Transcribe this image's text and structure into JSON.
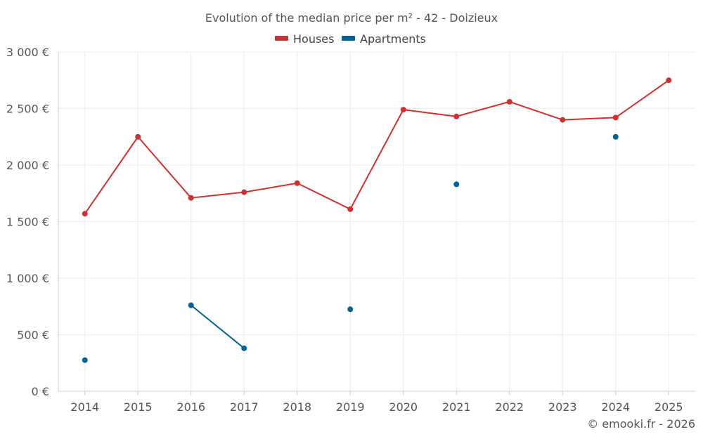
{
  "chart_data": {
    "type": "line",
    "title": "Evolution of the median price per m² - 42 - Doizieux",
    "xlabel": "",
    "ylabel": "",
    "categories": [
      "2014",
      "2015",
      "2016",
      "2017",
      "2018",
      "2019",
      "2020",
      "2021",
      "2022",
      "2023",
      "2024",
      "2025"
    ],
    "ylim": [
      0,
      3000
    ],
    "yticks": [
      0,
      500,
      1000,
      1500,
      2000,
      2500,
      3000
    ],
    "ytick_labels": [
      "0 €",
      "500 €",
      "1 000 €",
      "1 500 €",
      "2 000 €",
      "2 500 €",
      "3 000 €"
    ],
    "grid": true,
    "legend_position": "top-center",
    "series": [
      {
        "name": "Houses",
        "color": "#d32f2f",
        "values": [
          1570,
          2250,
          1710,
          1760,
          1840,
          1610,
          2490,
          2430,
          2560,
          2400,
          2420,
          2750
        ]
      },
      {
        "name": "Apartments",
        "color": "#00649b",
        "values": [
          275,
          null,
          760,
          380,
          null,
          725,
          null,
          1830,
          null,
          null,
          2250,
          null
        ]
      }
    ]
  },
  "footer": {
    "copyright": "© emooki.fr - 2026"
  }
}
